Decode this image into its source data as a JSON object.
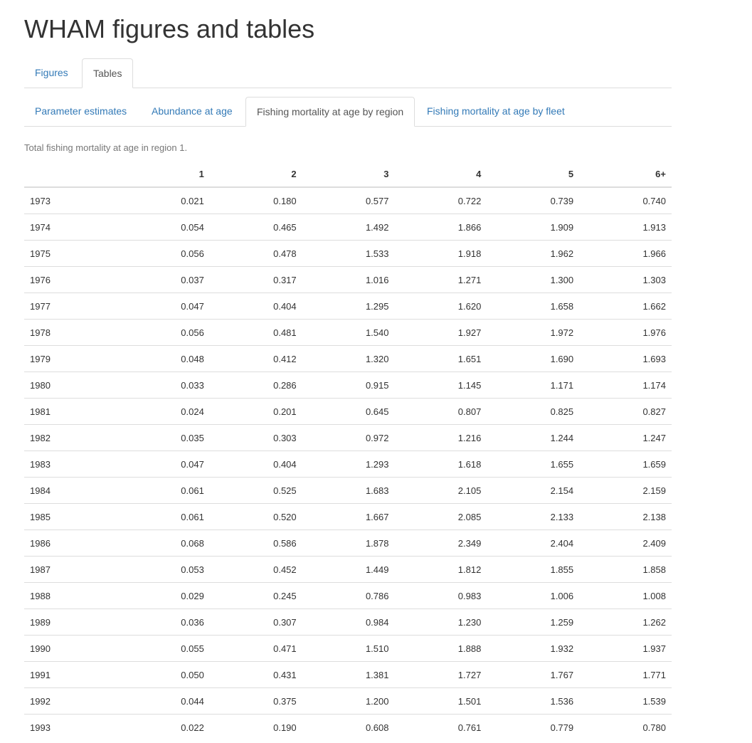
{
  "page": {
    "title": "WHAM figures and tables"
  },
  "top_tabs": [
    {
      "label": "Figures",
      "active": false
    },
    {
      "label": "Tables",
      "active": true
    }
  ],
  "sub_tabs": [
    {
      "label": "Parameter estimates",
      "active": false
    },
    {
      "label": "Abundance at age",
      "active": false
    },
    {
      "label": "Fishing mortality at age by region",
      "active": true
    },
    {
      "label": "Fishing mortality at age by fleet",
      "active": false
    }
  ],
  "table": {
    "caption": "Total fishing mortality at age in region 1.",
    "headers": [
      "",
      "1",
      "2",
      "3",
      "4",
      "5",
      "6+"
    ],
    "rows": [
      [
        "1973",
        "0.021",
        "0.180",
        "0.577",
        "0.722",
        "0.739",
        "0.740"
      ],
      [
        "1974",
        "0.054",
        "0.465",
        "1.492",
        "1.866",
        "1.909",
        "1.913"
      ],
      [
        "1975",
        "0.056",
        "0.478",
        "1.533",
        "1.918",
        "1.962",
        "1.966"
      ],
      [
        "1976",
        "0.037",
        "0.317",
        "1.016",
        "1.271",
        "1.300",
        "1.303"
      ],
      [
        "1977",
        "0.047",
        "0.404",
        "1.295",
        "1.620",
        "1.658",
        "1.662"
      ],
      [
        "1978",
        "0.056",
        "0.481",
        "1.540",
        "1.927",
        "1.972",
        "1.976"
      ],
      [
        "1979",
        "0.048",
        "0.412",
        "1.320",
        "1.651",
        "1.690",
        "1.693"
      ],
      [
        "1980",
        "0.033",
        "0.286",
        "0.915",
        "1.145",
        "1.171",
        "1.174"
      ],
      [
        "1981",
        "0.024",
        "0.201",
        "0.645",
        "0.807",
        "0.825",
        "0.827"
      ],
      [
        "1982",
        "0.035",
        "0.303",
        "0.972",
        "1.216",
        "1.244",
        "1.247"
      ],
      [
        "1983",
        "0.047",
        "0.404",
        "1.293",
        "1.618",
        "1.655",
        "1.659"
      ],
      [
        "1984",
        "0.061",
        "0.525",
        "1.683",
        "2.105",
        "2.154",
        "2.159"
      ],
      [
        "1985",
        "0.061",
        "0.520",
        "1.667",
        "2.085",
        "2.133",
        "2.138"
      ],
      [
        "1986",
        "0.068",
        "0.586",
        "1.878",
        "2.349",
        "2.404",
        "2.409"
      ],
      [
        "1987",
        "0.053",
        "0.452",
        "1.449",
        "1.812",
        "1.855",
        "1.858"
      ],
      [
        "1988",
        "0.029",
        "0.245",
        "0.786",
        "0.983",
        "1.006",
        "1.008"
      ],
      [
        "1989",
        "0.036",
        "0.307",
        "0.984",
        "1.230",
        "1.259",
        "1.262"
      ],
      [
        "1990",
        "0.055",
        "0.471",
        "1.510",
        "1.888",
        "1.932",
        "1.937"
      ],
      [
        "1991",
        "0.050",
        "0.431",
        "1.381",
        "1.727",
        "1.767",
        "1.771"
      ],
      [
        "1992",
        "0.044",
        "0.375",
        "1.200",
        "1.501",
        "1.536",
        "1.539"
      ],
      [
        "1993",
        "0.022",
        "0.190",
        "0.608",
        "0.761",
        "0.779",
        "0.780"
      ]
    ]
  },
  "colors": {
    "link": "#337ab7",
    "active_tab_text": "#555555",
    "border": "#dddddd",
    "caption": "#777777",
    "text": "#333333"
  }
}
